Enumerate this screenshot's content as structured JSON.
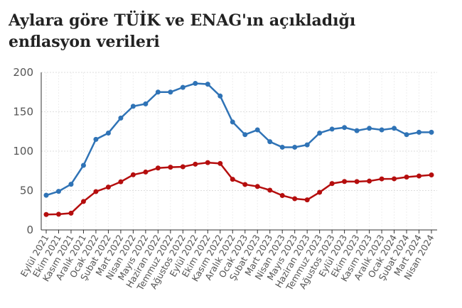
{
  "chart_data": {
    "type": "line",
    "title_lines": [
      "Aylara göre TÜİK ve ENAG'ın açıkladığı",
      "enflasyon verileri"
    ],
    "categories": [
      "Eylül 2021",
      "Ekim 2021",
      "Kasım 2021",
      "Aralık 2021",
      "Ocak 2022",
      "Şubat 2022",
      "Mart 2022",
      "Nisan 2022",
      "Mayıs 2022",
      "Haziran 2022",
      "Temmuz 2022",
      "Ağustos 2022",
      "Eylül 2022",
      "Ekim 2022",
      "Kasım 2022",
      "Aralık 2022",
      "Ocak 2023",
      "Şubat 2023",
      "Mart 2023",
      "Nisan 2023",
      "Mayıs 2023",
      "Haziran 2023",
      "Temmuz 2023",
      "Ağustos 2023",
      "Eylül 2023",
      "Ekim 2023",
      "Kasım 2023",
      "Aralık 2023",
      "Ocak 2024",
      "Şubat 2024",
      "Mart 2024",
      "Nisan 2024"
    ],
    "series": [
      {
        "color": "#2f73b6",
        "values": [
          44,
          49,
          58,
          82,
          115,
          123,
          142,
          157,
          160,
          175,
          175,
          181,
          186,
          185,
          170,
          137,
          121,
          127,
          112,
          105,
          105,
          108,
          123,
          128,
          130,
          126,
          129,
          127,
          129,
          121,
          124,
          124
        ]
      },
      {
        "color": "#b50e0e",
        "values": [
          19.6,
          19.9,
          21.3,
          36.1,
          48.7,
          54.4,
          61.1,
          70,
          73.5,
          78.6,
          79.6,
          80.2,
          83.5,
          85.5,
          84.4,
          64.3,
          57.7,
          55.2,
          50.5,
          43.7,
          39.6,
          38.2,
          47.8,
          58.9,
          61.5,
          61.4,
          62,
          64.8,
          64.9,
          67.1,
          68.5,
          69.8
        ]
      }
    ],
    "ylim": [
      0,
      200
    ],
    "yticks": [
      0,
      50,
      100,
      150,
      200
    ],
    "grid": true
  }
}
